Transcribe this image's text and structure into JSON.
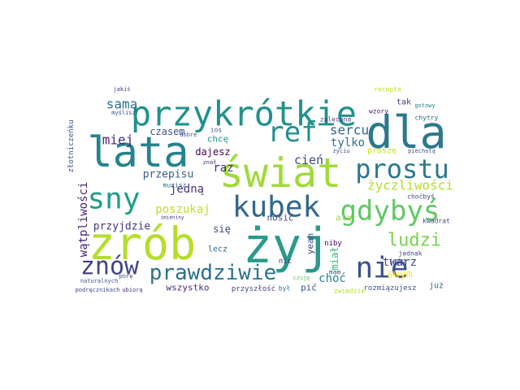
{
  "chart_data": {
    "type": "wordcloud",
    "words": [
      "żyj",
      "zrób",
      "lata",
      "dla",
      "świat",
      "przykrótkie",
      "kubek",
      "sny",
      "gdybyś",
      "prostu",
      "ref",
      "nie",
      "znów",
      "prawdziwie",
      "ludzi",
      "sercu",
      "życzliwości",
      "cień",
      "poszukaj",
      "jedną",
      "przepisu",
      "raz",
      "miej",
      "samą",
      "czasem",
      "dajesz",
      "chcę",
      "tylko",
      "nosić",
      "przyjdzie",
      "wątpliwości",
      "złotniczeńku",
      "twarz",
      "swym",
      "choć",
      "miał",
      "ale",
      "yeah",
      "się",
      "lecz",
      "nic",
      "niby",
      "wszystko",
      "pić",
      "już",
      "rozmiązujesz",
      "przyszłość",
      "był",
      "tak",
      "recepta",
      "wzory",
      "gotowy",
      "chytry",
      "zalecana",
      "życiu",
      "proszę",
      "piechotą",
      "ios",
      "kwadrat",
      "choćbyś",
      "jednak",
      "zwiedzie",
      "podręcznikach",
      "ubiorą",
      "naturalnych",
      "porę",
      "jakiś",
      "myślisz",
      "musisz",
      "znał",
      "dobre",
      "imieniny",
      "czuję",
      "mam",
      "jeden"
    ],
    "values": [
      60,
      55,
      52,
      55,
      50,
      42,
      36,
      36,
      34,
      32,
      34,
      36,
      30,
      26,
      22,
      16,
      16,
      15,
      14,
      14,
      13,
      14,
      16,
      16,
      12,
      12,
      11,
      14,
      11,
      13,
      14,
      9,
      14,
      13,
      14,
      12,
      11,
      11,
      12,
      10,
      9,
      9,
      11,
      11,
      10,
      9,
      9,
      8,
      10,
      8,
      8,
      7,
      8,
      8,
      7,
      10,
      7,
      8,
      8,
      8,
      8,
      8,
      7,
      7,
      7,
      7,
      7,
      7,
      8,
      7,
      7,
      6,
      7,
      8,
      7
    ],
    "colors": [
      "#2a9a8a",
      "#b5de2b",
      "#26828e",
      "#2a788e",
      "#a0da39",
      "#21918c",
      "#31688e",
      "#1f9e89",
      "#5ec962",
      "#2a788e",
      "#21918c",
      "#3b528b",
      "#414487",
      "#2c728e",
      "#7ad151",
      "#31688e",
      "#b5de2b",
      "#3e4989",
      "#bddf26",
      "#46327e",
      "#365c8d",
      "#472d7b",
      "#482878",
      "#2d708e",
      "#3b528b",
      "#440154",
      "#1f9a8a",
      "#2d708e",
      "#3e4989",
      "#453781",
      "#482374",
      "#3b528b",
      "#3e4a89",
      "#fde725",
      "#26828e",
      "#35b779",
      "#a5db36",
      "#3f4788",
      "#3e4989",
      "#31688e",
      "#472c7a",
      "#440154",
      "#482878",
      "#3e4c8a",
      "#2d708e",
      "#39558c",
      "#3f4889",
      "#297b8e",
      "#453882",
      "#c8e020",
      "#48186a",
      "#26828e",
      "#31688e",
      "#404688",
      "#3b528b",
      "#cae11f",
      "#3b528b",
      "#3b528b",
      "#404688",
      "#404688",
      "#3e4989",
      "#b5de2b",
      "#3e4989",
      "#46327e",
      "#3b528b",
      "#433e85",
      "#453781",
      "#3e4989",
      "#31688e",
      "#482878",
      "#3b528b",
      "#46327e",
      "#5ec962",
      "#3b528b",
      "#433e85"
    ]
  }
}
